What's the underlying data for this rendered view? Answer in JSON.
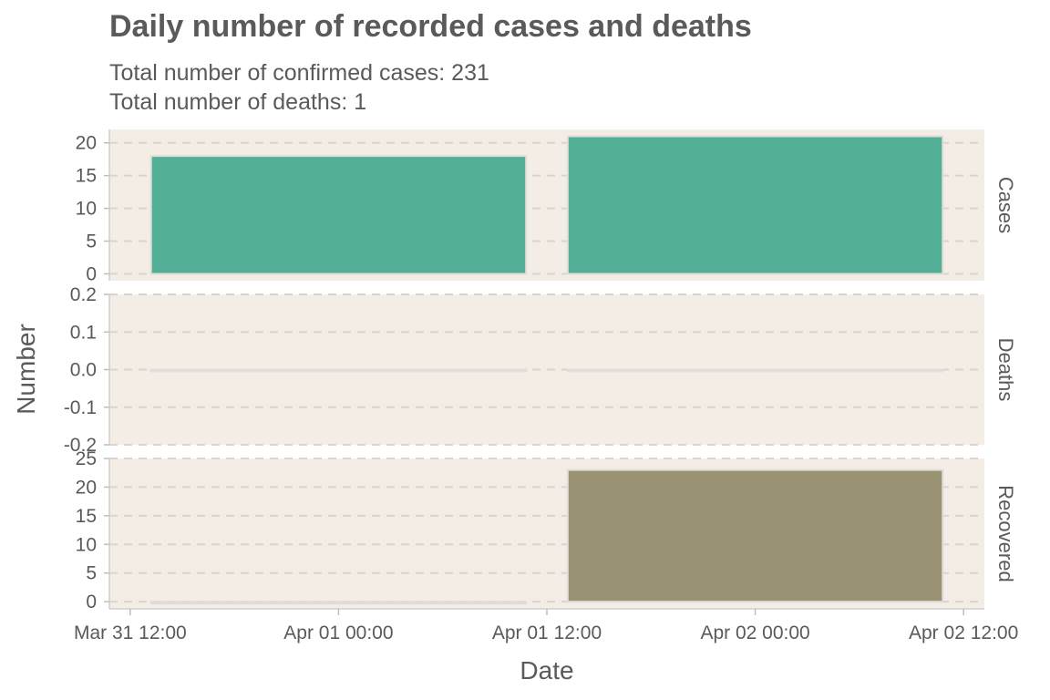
{
  "title": "Daily number of recorded cases and deaths",
  "subtitle_lines": [
    "Total number of confirmed cases: 231",
    "Total number of deaths: 1"
  ],
  "colors": {
    "panel_background": "#f3ede6",
    "cases": "#52af95",
    "recovered": "#999373",
    "deaths": "#e6e2dc",
    "bar_border": "#e0ddd8",
    "grid": "#d9d4ce",
    "text": "#5a5a5a"
  },
  "chart_data": {
    "type": "bar",
    "xlabel": "Date",
    "ylabel": "Number",
    "x_range": [
      "2024-03-31 10:48",
      "2024-04-02 13:12"
    ],
    "x_ticks": [
      "2024-03-31 12:00",
      "2024-04-01 00:00",
      "2024-04-01 12:00",
      "2024-04-02 00:00",
      "2024-04-02 12:00"
    ],
    "x_tick_labels": [
      "Mar 31 12:00",
      "Apr 01 00:00",
      "Apr 01 12:00",
      "Apr 02 00:00",
      "Apr 02 12:00"
    ],
    "x": [
      "2024-04-01",
      "2024-04-02"
    ],
    "bar_width_days": 0.9,
    "grid": true,
    "facets": [
      {
        "name": "Cases",
        "values": [
          18,
          21
        ],
        "ylim": [
          -1.05,
          22.05
        ],
        "y_ticks": [
          0,
          5,
          10,
          15,
          20
        ],
        "y_tick_labels": [
          "0",
          "5",
          "10",
          "15",
          "20"
        ],
        "color": "#52af95"
      },
      {
        "name": "Deaths",
        "values": [
          0,
          0
        ],
        "ylim": [
          -0.2,
          0.2
        ],
        "y_ticks": [
          -0.2,
          -0.1,
          0.0,
          0.1,
          0.2
        ],
        "y_tick_labels": [
          "-0.2",
          "-0.1",
          "0.0",
          "0.1",
          "0.2"
        ],
        "color": "#e6e2dc"
      },
      {
        "name": "Recovered",
        "values": [
          0,
          23
        ],
        "ylim": [
          -1.25,
          25
        ],
        "y_ticks": [
          0,
          5,
          10,
          15,
          20,
          25
        ],
        "y_tick_labels": [
          "0",
          "5",
          "10",
          "15",
          "20",
          "25"
        ],
        "color": "#999373"
      }
    ]
  }
}
